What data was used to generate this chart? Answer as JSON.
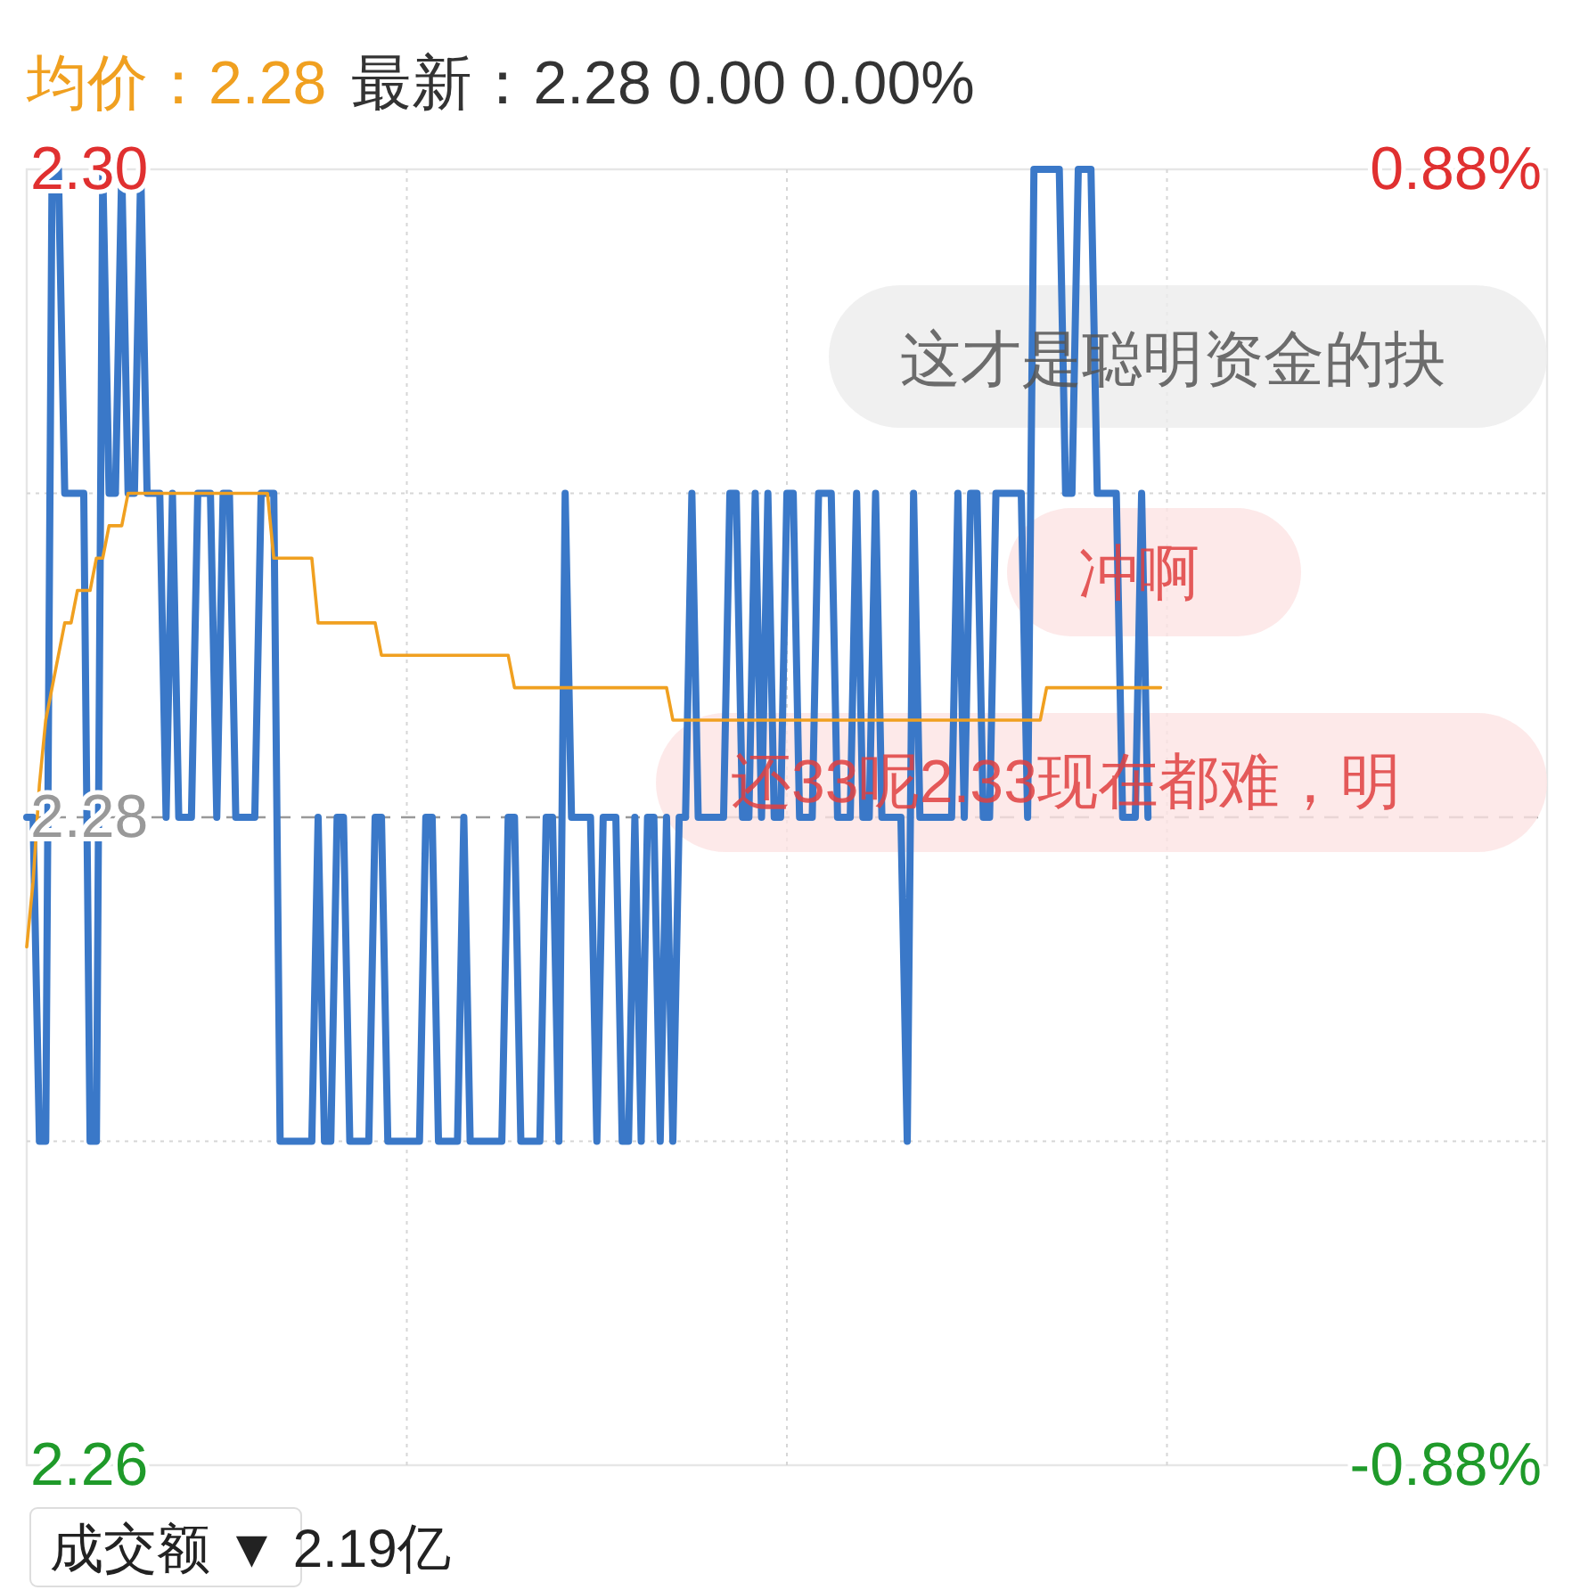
{
  "chart_data": {
    "type": "line",
    "title": "均价：2.28",
    "subtitle": "最新：2.28  0.00  0.00%",
    "categories": [
      null,
      null,
      null,
      null,
      null,
      null,
      null,
      null,
      null,
      null,
      null,
      null,
      null,
      null,
      null,
      null,
      null,
      null,
      null,
      null,
      null,
      null,
      null,
      null,
      null,
      null,
      null,
      null,
      null,
      null,
      null,
      null,
      null,
      null,
      null,
      null,
      null,
      null,
      null,
      null,
      null,
      null,
      null,
      null,
      null,
      null,
      null,
      null,
      null,
      null,
      null,
      null,
      null,
      null,
      null,
      null,
      null,
      null,
      null,
      null,
      null,
      null,
      null,
      null,
      null,
      null,
      null,
      null,
      null,
      null,
      null,
      null,
      null,
      null,
      null,
      null,
      null,
      null,
      null,
      null,
      null,
      null,
      null,
      null,
      null,
      null,
      null,
      null,
      null,
      null,
      null,
      null,
      null,
      null,
      null,
      null,
      null,
      null,
      null,
      null,
      null,
      null,
      null,
      null,
      null,
      null,
      null,
      null,
      null,
      null,
      null,
      null,
      null,
      null,
      null,
      null,
      null,
      null,
      null,
      null,
      null,
      null,
      null,
      null,
      null,
      null,
      null,
      null,
      null,
      null,
      null,
      null,
      null,
      null,
      null,
      null,
      null,
      null,
      null,
      null,
      null,
      null,
      null,
      null,
      null,
      null,
      null,
      null,
      null,
      null,
      null,
      null,
      null,
      null,
      null,
      null,
      null,
      null,
      null,
      null,
      null,
      null,
      null,
      null,
      null,
      null,
      null,
      null,
      null,
      null,
      null,
      null,
      null,
      null,
      null,
      null,
      null,
      null,
      null,
      null,
      null,
      null,
      null,
      null,
      null,
      null,
      null,
      null,
      null,
      null,
      null,
      null,
      null,
      null,
      null,
      null,
      null,
      null,
      null,
      null,
      null,
      null,
      null,
      null,
      null,
      null,
      null,
      null,
      null,
      null,
      null,
      null,
      null,
      null,
      null,
      null,
      null,
      null,
      null,
      null,
      null,
      null,
      null,
      null,
      null,
      null,
      null,
      null,
      null,
      null,
      null,
      null,
      null,
      null,
      null,
      null,
      null,
      null,
      null,
      null,
      null
    ],
    "ylim": [
      2.26,
      2.3
    ],
    "yticks": [
      {
        "value": 2.26,
        "label": "2.26"
      },
      {
        "value": 2.27,
        "label": null
      },
      {
        "value": 2.28,
        "label": "2.28"
      },
      {
        "value": 2.29,
        "label": null
      },
      {
        "value": 2.3,
        "label": "2.30"
      }
    ],
    "y2lim": [
      -0.88,
      0.88
    ],
    "y2ticks": [
      {
        "value": -0.88,
        "label": "-0.88%"
      },
      {
        "value": 0.88,
        "label": "0.88%"
      }
    ],
    "grid": true,
    "line_style": "solid",
    "ref_lines": [
      {
        "axis": "y",
        "value": 2.28,
        "label": null,
        "color": "#999999",
        "line_style": "dashed"
      }
    ],
    "annotations": [
      "成交额 ▼ 2.19亿",
      "这才是聪明资金的抉",
      "冲啊",
      "还33呢2.33现在都难，明"
    ],
    "series": [
      {
        "color": "#3a78c8",
        "values": [
          2.28,
          2.28,
          2.27,
          2.27,
          2.3,
          2.3,
          2.29,
          2.29,
          2.29,
          2.29,
          2.27,
          2.27,
          2.3,
          2.29,
          2.29,
          2.3,
          2.29,
          2.29,
          2.3,
          2.29,
          2.29,
          2.29,
          2.28,
          2.29,
          2.28,
          2.28,
          2.28,
          2.29,
          2.29,
          2.29,
          2.28,
          2.29,
          2.29,
          2.28,
          2.28,
          2.28,
          2.28,
          2.29,
          2.29,
          2.29,
          2.27,
          2.27,
          2.27,
          2.27,
          2.27,
          2.27,
          2.28,
          2.27,
          2.27,
          2.28,
          2.28,
          2.27,
          2.27,
          2.27,
          2.27,
          2.28,
          2.28,
          2.27,
          2.27,
          2.27,
          2.27,
          2.27,
          2.27,
          2.28,
          2.28,
          2.27,
          2.27,
          2.27,
          2.27,
          2.28,
          2.27,
          2.27,
          2.27,
          2.27,
          2.27,
          2.27,
          2.28,
          2.28,
          2.27,
          2.27,
          2.27,
          2.27,
          2.28,
          2.28,
          2.27,
          2.29,
          2.28,
          2.28,
          2.28,
          2.28,
          2.27,
          2.28,
          2.28,
          2.28,
          2.27,
          2.27,
          2.28,
          2.27,
          2.28,
          2.28,
          2.27,
          2.28,
          2.27,
          2.28,
          2.28,
          2.29,
          2.28,
          2.28,
          2.28,
          2.28,
          2.28,
          2.29,
          2.29,
          2.28,
          2.28,
          2.29,
          2.28,
          2.29,
          2.28,
          2.28,
          2.29,
          2.29,
          2.28,
          2.28,
          2.28,
          2.29,
          2.29,
          2.29,
          2.28,
          2.28,
          2.28,
          2.29,
          2.28,
          2.28,
          2.29,
          2.28,
          2.28,
          2.28,
          2.28,
          2.27,
          2.29,
          2.28,
          2.28,
          2.28,
          2.28,
          2.28,
          2.28,
          2.29,
          2.28,
          2.29,
          2.29,
          2.28,
          2.28,
          2.29,
          2.29,
          2.29,
          2.29,
          2.29,
          2.28,
          2.3,
          2.3,
          2.3,
          2.3,
          2.3,
          2.29,
          2.29,
          2.3,
          2.3,
          2.3,
          2.29,
          2.29,
          2.29,
          2.29,
          2.28,
          2.28,
          2.28,
          2.29,
          2.28,
          null,
          null,
          null,
          null,
          null,
          null,
          null,
          null,
          null,
          null,
          null,
          null,
          null,
          null,
          null,
          null,
          null,
          null,
          null,
          null,
          null,
          null,
          null,
          null,
          null,
          null,
          null,
          null,
          null,
          null,
          null,
          null,
          null,
          null,
          null,
          null,
          null,
          null,
          null,
          null,
          null,
          null,
          null,
          null,
          null,
          null,
          null,
          null,
          null,
          null,
          null,
          null,
          null,
          null,
          null,
          null,
          null,
          null,
          null,
          null,
          null,
          null,
          null
        ]
      },
      {
        "color": "#f0a020",
        "values": [
          2.276,
          2.278,
          2.281,
          2.283,
          2.284,
          2.285,
          2.286,
          2.286,
          2.287,
          2.287,
          2.287,
          2.288,
          2.288,
          2.289,
          2.289,
          2.289,
          2.29,
          2.29,
          2.29,
          2.29,
          2.29,
          2.29,
          2.29,
          2.29,
          2.29,
          2.29,
          2.29,
          2.29,
          2.29,
          2.29,
          2.29,
          2.29,
          2.29,
          2.29,
          2.29,
          2.29,
          2.29,
          2.29,
          2.29,
          2.288,
          2.288,
          2.288,
          2.288,
          2.288,
          2.288,
          2.288,
          2.286,
          2.286,
          2.286,
          2.286,
          2.286,
          2.286,
          2.286,
          2.286,
          2.286,
          2.286,
          2.285,
          2.285,
          2.285,
          2.285,
          2.285,
          2.285,
          2.285,
          2.285,
          2.285,
          2.285,
          2.285,
          2.285,
          2.285,
          2.285,
          2.285,
          2.285,
          2.285,
          2.285,
          2.285,
          2.285,
          2.285,
          2.284,
          2.284,
          2.284,
          2.284,
          2.284,
          2.284,
          2.284,
          2.284,
          2.284,
          2.284,
          2.284,
          2.284,
          2.284,
          2.284,
          2.284,
          2.284,
          2.284,
          2.284,
          2.284,
          2.284,
          2.284,
          2.284,
          2.284,
          2.284,
          2.284,
          2.283,
          2.283,
          2.283,
          2.283,
          2.283,
          2.283,
          2.283,
          2.283,
          2.283,
          2.283,
          2.283,
          2.283,
          2.283,
          2.283,
          2.283,
          2.283,
          2.283,
          2.283,
          2.283,
          2.283,
          2.283,
          2.283,
          2.283,
          2.283,
          2.283,
          2.283,
          2.283,
          2.283,
          2.283,
          2.283,
          2.283,
          2.283,
          2.283,
          2.283,
          2.283,
          2.283,
          2.283,
          2.283,
          2.283,
          2.283,
          2.283,
          2.283,
          2.283,
          2.283,
          2.283,
          2.283,
          2.283,
          2.283,
          2.283,
          2.283,
          2.283,
          2.283,
          2.283,
          2.283,
          2.283,
          2.283,
          2.283,
          2.283,
          2.283,
          2.284,
          2.284,
          2.284,
          2.284,
          2.284,
          2.284,
          2.284,
          2.284,
          2.284,
          2.284,
          2.284,
          2.284,
          2.284,
          2.284,
          2.284,
          2.284,
          2.284,
          2.284,
          2.284,
          null,
          null,
          null,
          null,
          null,
          null,
          null,
          null,
          null,
          null,
          null,
          null,
          null,
          null,
          null,
          null,
          null,
          null,
          null,
          null,
          null,
          null,
          null,
          null,
          null,
          null,
          null,
          null,
          null,
          null,
          null,
          null,
          null,
          null,
          null,
          null,
          null,
          null,
          null,
          null,
          null,
          null,
          null,
          null,
          null,
          null,
          null,
          null,
          null,
          null,
          null,
          null,
          null,
          null,
          null,
          null,
          null,
          null,
          null,
          null,
          null
        ]
      }
    ]
  }
}
